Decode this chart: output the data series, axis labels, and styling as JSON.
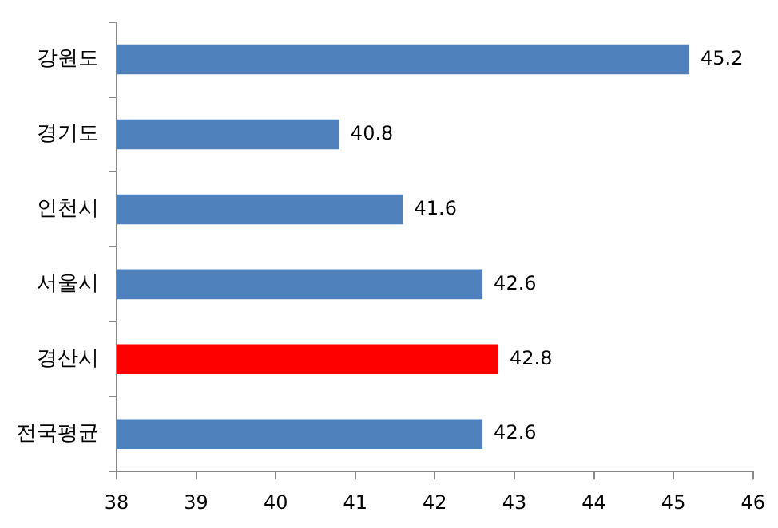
{
  "chart_data": {
    "type": "bar",
    "orientation": "horizontal",
    "categories": [
      "강원도",
      "경기도",
      "인천시",
      "서울시",
      "경산시",
      "전국평균"
    ],
    "values": [
      45.2,
      40.8,
      41.6,
      42.6,
      42.8,
      42.6
    ],
    "colors": [
      "#4f81bd",
      "#4f81bd",
      "#4f81bd",
      "#4f81bd",
      "#ff0000",
      "#4f81bd"
    ],
    "xlim": [
      38,
      46
    ],
    "xticks": [
      38,
      39,
      40,
      41,
      42,
      43,
      44,
      45,
      46
    ],
    "grid": false,
    "legend": false,
    "data_labels": true
  }
}
